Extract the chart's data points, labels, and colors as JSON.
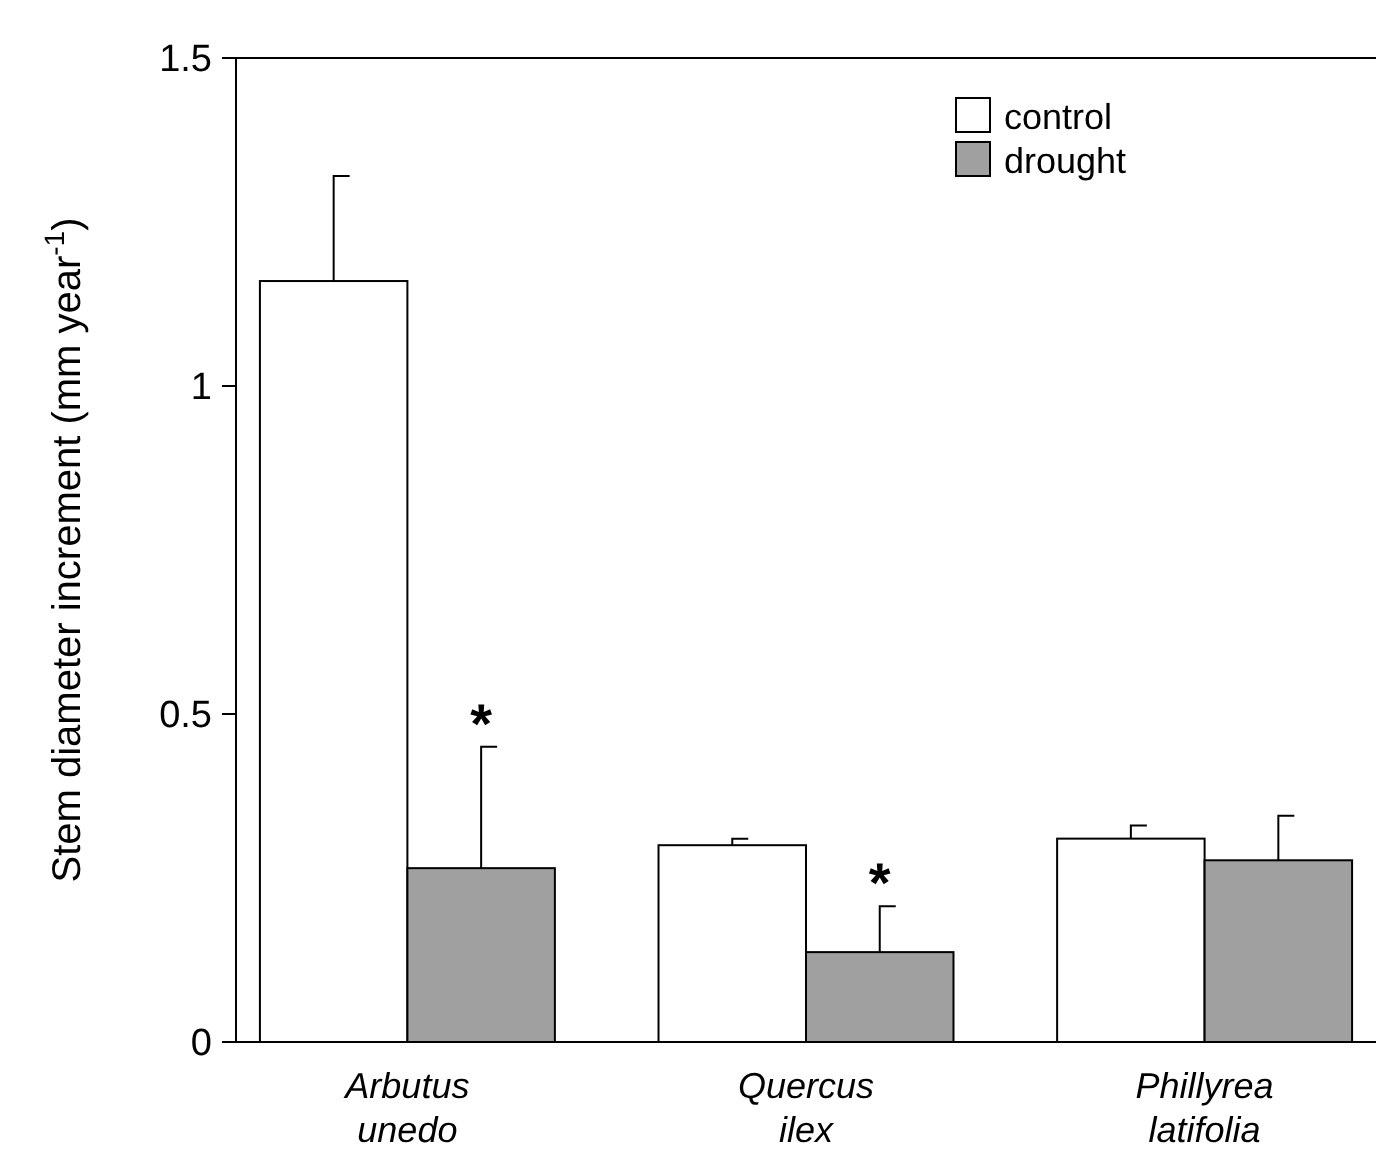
{
  "chart_data": {
    "type": "bar",
    "ylabel": "Stem diameter increment (mm year$^{-1}$)",
    "categories": [
      "Arbutus unedo",
      "Quercus ilex",
      "Phillyrea latifolia"
    ],
    "series": [
      {
        "name": "control",
        "color": "#ffffff",
        "values": [
          1.16,
          0.3,
          0.31
        ],
        "errors": [
          [
            1.16,
            1.32
          ],
          [
            0.3,
            0.31
          ],
          [
            0.31,
            0.33
          ]
        ]
      },
      {
        "name": "drought",
        "color": "#a0a0a0",
        "values": [
          0.265,
          0.137,
          0.277
        ],
        "errors": [
          [
            0.265,
            0.45
          ],
          [
            0.137,
            0.207
          ],
          [
            0.277,
            0.345
          ]
        ]
      }
    ],
    "ylim": [
      0,
      1.5
    ],
    "yticks": [
      0,
      0.5,
      1,
      1.5
    ],
    "grid": false,
    "legend": "top right",
    "annotations": [
      {
        "text": "*",
        "x": "Arbutus unedo",
        "y": 0.45
      },
      {
        "text": "*",
        "x": "Quercus ilex",
        "y": 0.207
      }
    ]
  }
}
